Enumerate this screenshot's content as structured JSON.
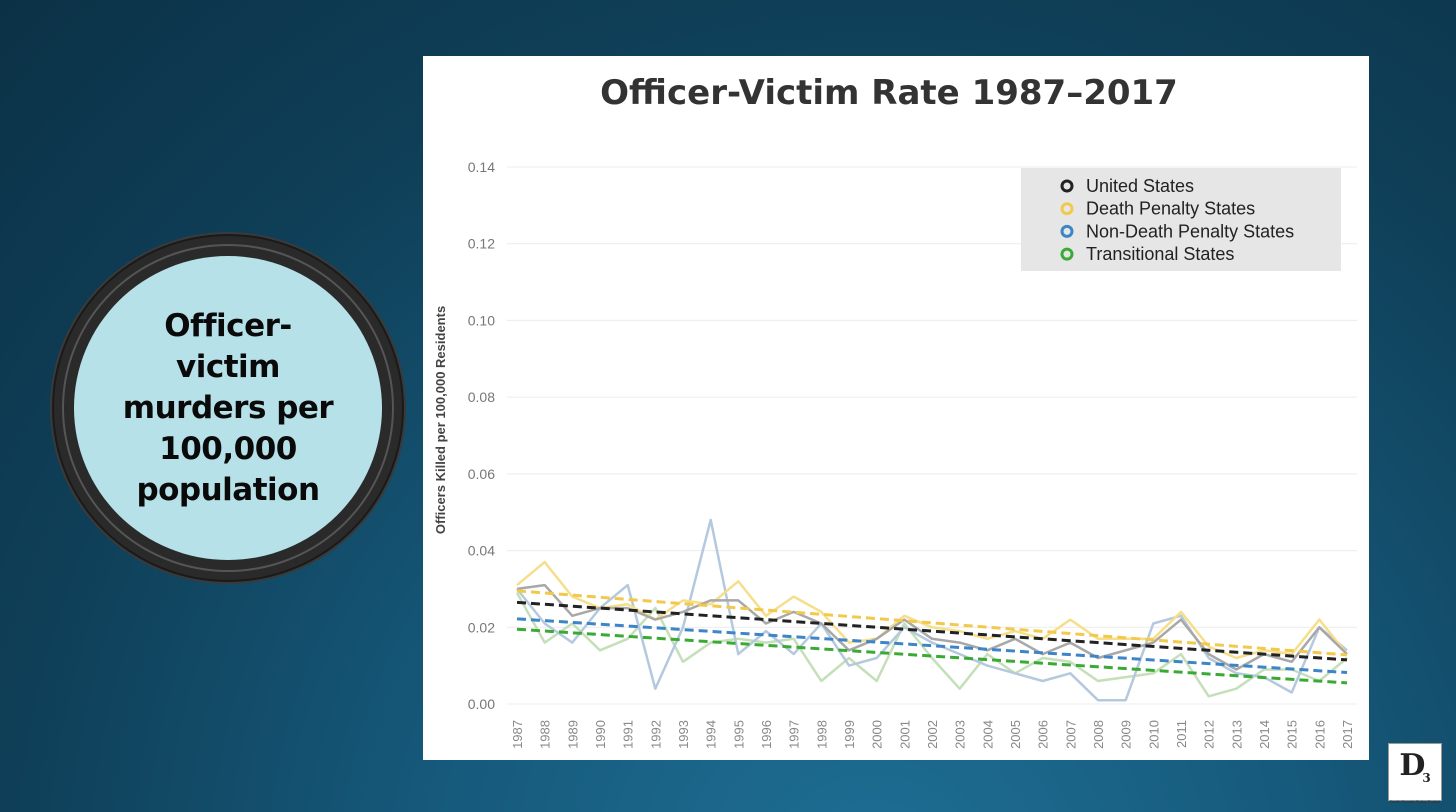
{
  "badge": {
    "text": "Officer-victim murders per 100,000 population"
  },
  "logo": {
    "mark": "D",
    "mark_sub": "3",
    "caption": "Death Penalty Policy Project"
  },
  "chart_data": {
    "type": "line",
    "title": "Officer-Victim Rate 1987–2017",
    "ylabel": "Officers Killed per 100,000 Residents",
    "xlabel": "",
    "ylim": [
      0,
      0.14
    ],
    "yticks": [
      "0.00",
      "0.02",
      "0.04",
      "0.06",
      "0.08",
      "0.10",
      "0.12",
      "0.14"
    ],
    "grid": true,
    "legend_position": "top-right",
    "categories": [
      "1987",
      "1988",
      "1989",
      "1990",
      "1991",
      "1992",
      "1993",
      "1994",
      "1995",
      "1996",
      "1997",
      "1998",
      "1999",
      "2000",
      "2001",
      "2002",
      "2003",
      "2004",
      "2005",
      "2006",
      "2007",
      "2008",
      "2009",
      "2010",
      "2011",
      "2012",
      "2013",
      "2014",
      "2015",
      "2016",
      "2017"
    ],
    "series": [
      {
        "name": "United States",
        "color": "#222222",
        "line_color": "#a8a8a8",
        "values": [
          0.03,
          0.031,
          0.023,
          0.025,
          0.025,
          0.022,
          0.024,
          0.027,
          0.027,
          0.021,
          0.024,
          0.021,
          0.014,
          0.017,
          0.022,
          0.017,
          0.016,
          0.014,
          0.017,
          0.013,
          0.016,
          0.012,
          0.014,
          0.016,
          0.022,
          0.013,
          0.009,
          0.013,
          0.011,
          0.02,
          0.013
        ],
        "trend": [
          0.0265,
          0.0115
        ]
      },
      {
        "name": "Death Penalty States",
        "color": "#f2c94c",
        "line_color": "#f6df8a",
        "values": [
          0.031,
          0.037,
          0.028,
          0.025,
          0.026,
          0.022,
          0.027,
          0.026,
          0.032,
          0.023,
          0.028,
          0.024,
          0.016,
          0.017,
          0.023,
          0.02,
          0.019,
          0.017,
          0.019,
          0.017,
          0.022,
          0.017,
          0.017,
          0.017,
          0.024,
          0.015,
          0.012,
          0.014,
          0.013,
          0.022,
          0.013
        ],
        "trend": [
          0.0295,
          0.0128
        ]
      },
      {
        "name": "Non-Death Penalty States",
        "color": "#3d85c6",
        "line_color": "#b4c9de",
        "values": [
          0.03,
          0.021,
          0.016,
          0.025,
          0.031,
          0.004,
          0.02,
          0.048,
          0.013,
          0.019,
          0.013,
          0.021,
          0.01,
          0.012,
          0.02,
          0.016,
          0.013,
          0.01,
          0.008,
          0.006,
          0.008,
          0.001,
          0.001,
          0.021,
          0.023,
          0.012,
          0.008,
          0.007,
          0.003,
          0.02,
          0.014
        ],
        "trend": [
          0.0222,
          0.0082
        ]
      },
      {
        "name": "Transitional States",
        "color": "#3aaa35",
        "line_color": "#c5dfb9",
        "values": [
          0.029,
          0.016,
          0.021,
          0.014,
          0.017,
          0.025,
          0.011,
          0.016,
          0.017,
          0.016,
          0.017,
          0.006,
          0.012,
          0.006,
          0.021,
          0.012,
          0.004,
          0.013,
          0.008,
          0.012,
          0.011,
          0.006,
          0.007,
          0.008,
          0.013,
          0.002,
          0.004,
          0.009,
          0.009,
          0.006,
          0.012
        ],
        "trend": [
          0.0195,
          0.0055
        ]
      }
    ]
  }
}
